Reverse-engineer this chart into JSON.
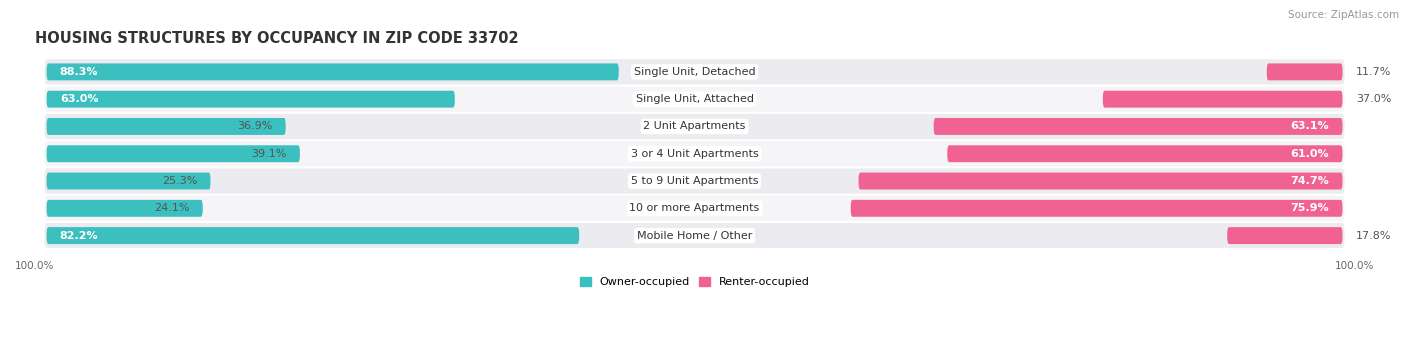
{
  "title": "HOUSING STRUCTURES BY OCCUPANCY IN ZIP CODE 33702",
  "source": "Source: ZipAtlas.com",
  "categories": [
    "Single Unit, Detached",
    "Single Unit, Attached",
    "2 Unit Apartments",
    "3 or 4 Unit Apartments",
    "5 to 9 Unit Apartments",
    "10 or more Apartments",
    "Mobile Home / Other"
  ],
  "owner_pct": [
    88.3,
    63.0,
    36.9,
    39.1,
    25.3,
    24.1,
    82.2
  ],
  "renter_pct": [
    11.7,
    37.0,
    63.1,
    61.0,
    74.7,
    75.9,
    17.8
  ],
  "owner_color": "#3BBFBF",
  "renter_color": "#F06292",
  "owner_color_light": "#B2E5E5",
  "renter_color_light": "#F9BDD4",
  "row_bg_odd": "#EBEBF0",
  "row_bg_even": "#F5F5F8",
  "bar_height": 0.62,
  "title_fontsize": 10.5,
  "label_fontsize": 8,
  "pct_fontsize": 8,
  "tick_fontsize": 7.5,
  "source_fontsize": 7.5,
  "xlim_left": -100,
  "xlim_right": 100
}
